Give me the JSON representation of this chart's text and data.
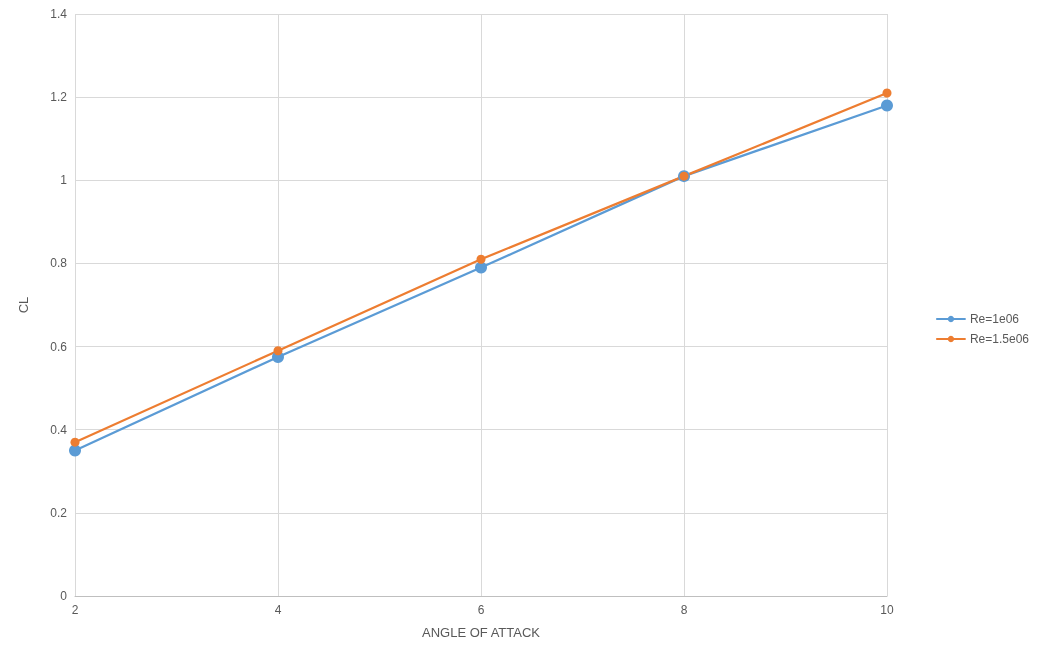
{
  "chart_data": {
    "type": "line",
    "xlabel": "ANGLE OF ATTACK",
    "ylabel": "CL",
    "x": [
      2,
      4,
      6,
      8,
      10
    ],
    "series": [
      {
        "name": "Re=1e06",
        "color": "#5b9bd5",
        "values": [
          0.35,
          0.575,
          0.79,
          1.01,
          1.18
        ]
      },
      {
        "name": "Re=1.5e06",
        "color": "#ed7d31",
        "values": [
          0.37,
          0.59,
          0.81,
          1.01,
          1.21
        ]
      }
    ],
    "xlim": [
      2,
      10
    ],
    "xticks": [
      2,
      4,
      6,
      8,
      10
    ],
    "ylim": [
      0,
      1.4
    ],
    "yticks": [
      0,
      0.2,
      0.4,
      0.6,
      0.8,
      1,
      1.2,
      1.4
    ],
    "grid": true,
    "legend": "right",
    "marker": "circle",
    "line_style": "solid"
  }
}
